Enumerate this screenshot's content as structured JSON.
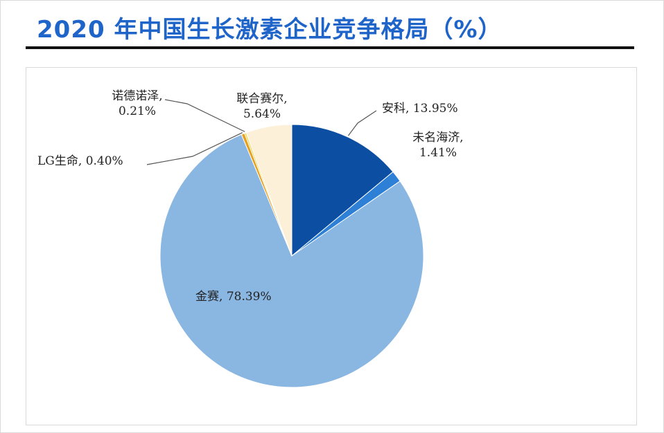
{
  "title": "2020 年中国生长激素企业竞争格局（%）",
  "chart_data": {
    "type": "pie",
    "title": "2020 年中国生长激素企业竞争格局（%）",
    "start": "12 o'clock",
    "direction": "clockwise",
    "labels": {
      "anke": {
        "name": "安科,",
        "value": "13.95%"
      },
      "weiming": {
        "name": "未名海济,",
        "value": "1.41%"
      },
      "jinsai": {
        "name": "金赛,",
        "value": "78.39%"
      },
      "lg": {
        "name": "LG生命,",
        "value": "0.40%"
      },
      "nuode": {
        "name": "诺德诺泽,",
        "value": "0.21%"
      },
      "lianhe": {
        "name": "联合赛尔,",
        "value": "5.64%"
      }
    },
    "slices": [
      {
        "key": "anke",
        "name": "安科",
        "value": 13.95,
        "color": "#0b4ea2"
      },
      {
        "key": "weiming",
        "name": "未名海济",
        "value": 1.41,
        "color": "#2e7fd6"
      },
      {
        "key": "jinsai",
        "name": "金赛",
        "value": 78.39,
        "color": "#8ab6e2"
      },
      {
        "key": "lg",
        "name": "LG生命",
        "value": 0.4,
        "color": "#e8a020"
      },
      {
        "key": "nuode",
        "name": "诺德诺泽",
        "value": 0.21,
        "color": "#f3d64a"
      },
      {
        "key": "lianhe",
        "name": "联合赛尔",
        "value": 5.64,
        "color": "#fdf0d8"
      }
    ]
  }
}
